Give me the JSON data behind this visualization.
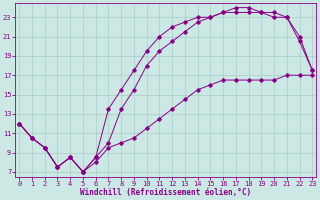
{
  "xlabel": "Windchill (Refroidissement éolien,°C)",
  "bg_color": "#cce8e4",
  "grid_color": "#aaccc8",
  "line_color": "#880088",
  "line_color2": "#aa00aa",
  "top_line_x": [
    0,
    1,
    2,
    3,
    4,
    5,
    6,
    7,
    8,
    9,
    10,
    11,
    12,
    13,
    14,
    15,
    16,
    17,
    18,
    19,
    20,
    21,
    22,
    23
  ],
  "top_line_y": [
    12,
    10.5,
    9.5,
    7.5,
    8.5,
    7.0,
    8.5,
    13.5,
    15.5,
    17.5,
    19.5,
    21.0,
    22.0,
    22.5,
    23.0,
    23.0,
    23.5,
    23.5,
    23.5,
    23.5,
    23.5,
    23.0,
    21.0,
    17.5
  ],
  "mid_line_x": [
    0,
    1,
    2,
    3,
    4,
    5,
    6,
    7,
    8,
    9,
    10,
    11,
    12,
    13,
    14,
    15,
    16,
    17,
    18,
    19,
    20,
    21,
    22,
    23
  ],
  "mid_line_y": [
    12,
    10.5,
    9.5,
    7.5,
    8.5,
    7.0,
    8.5,
    10.0,
    13.5,
    15.5,
    18.0,
    19.5,
    20.5,
    21.5,
    22.5,
    23.0,
    23.5,
    24.0,
    24.0,
    23.5,
    23.0,
    23.0,
    20.5,
    17.5
  ],
  "bot_line_x": [
    0,
    1,
    2,
    3,
    4,
    5,
    6,
    7,
    8,
    9,
    10,
    11,
    12,
    13,
    14,
    15,
    16,
    17,
    18,
    19,
    20,
    21,
    22,
    23
  ],
  "bot_line_y": [
    12,
    10.5,
    9.5,
    7.5,
    8.5,
    7.0,
    8.0,
    9.5,
    10.0,
    10.5,
    11.5,
    12.5,
    13.5,
    14.5,
    15.5,
    16.0,
    16.5,
    16.5,
    16.5,
    16.5,
    16.5,
    17.0,
    17.0,
    17.0
  ],
  "yticks": [
    7,
    9,
    11,
    13,
    15,
    17,
    19,
    21,
    23
  ],
  "xticks": [
    0,
    1,
    2,
    3,
    4,
    5,
    6,
    7,
    8,
    9,
    10,
    11,
    12,
    13,
    14,
    15,
    16,
    17,
    18,
    19,
    20,
    21,
    22,
    23
  ],
  "ylim": [
    6.5,
    24.5
  ],
  "xlim": [
    -0.3,
    23.3
  ],
  "tick_fontsize": 5.0,
  "label_fontsize": 5.5
}
